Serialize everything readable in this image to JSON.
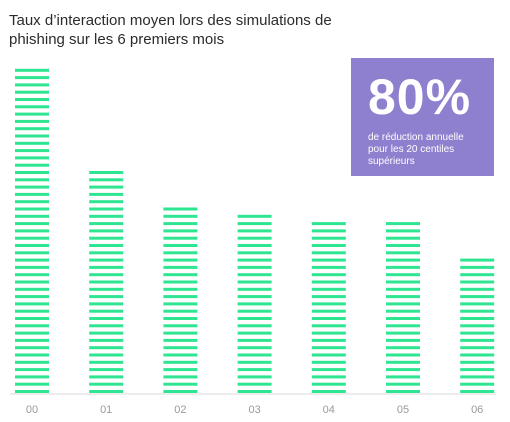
{
  "title": "Taux d’interaction moyen lors des simulations de phishing sur les 6 premiers mois",
  "callout": {
    "value": "80%",
    "text": "de réduction annuelle pour les 20 centiles supérieurs"
  },
  "colors": {
    "bars": "#2ee591",
    "axis": "#d9d9d9",
    "tick_labels": "#9a9a9a",
    "callout_bg": "#8f7fcf"
  },
  "chart_data": {
    "type": "bar",
    "categories": [
      "00",
      "01",
      "02",
      "03",
      "04",
      "05",
      "06"
    ],
    "values": [
      100,
      69,
      57,
      54,
      52,
      52,
      42
    ],
    "ylim": [
      0,
      100
    ],
    "grid": false,
    "legend": "none"
  }
}
